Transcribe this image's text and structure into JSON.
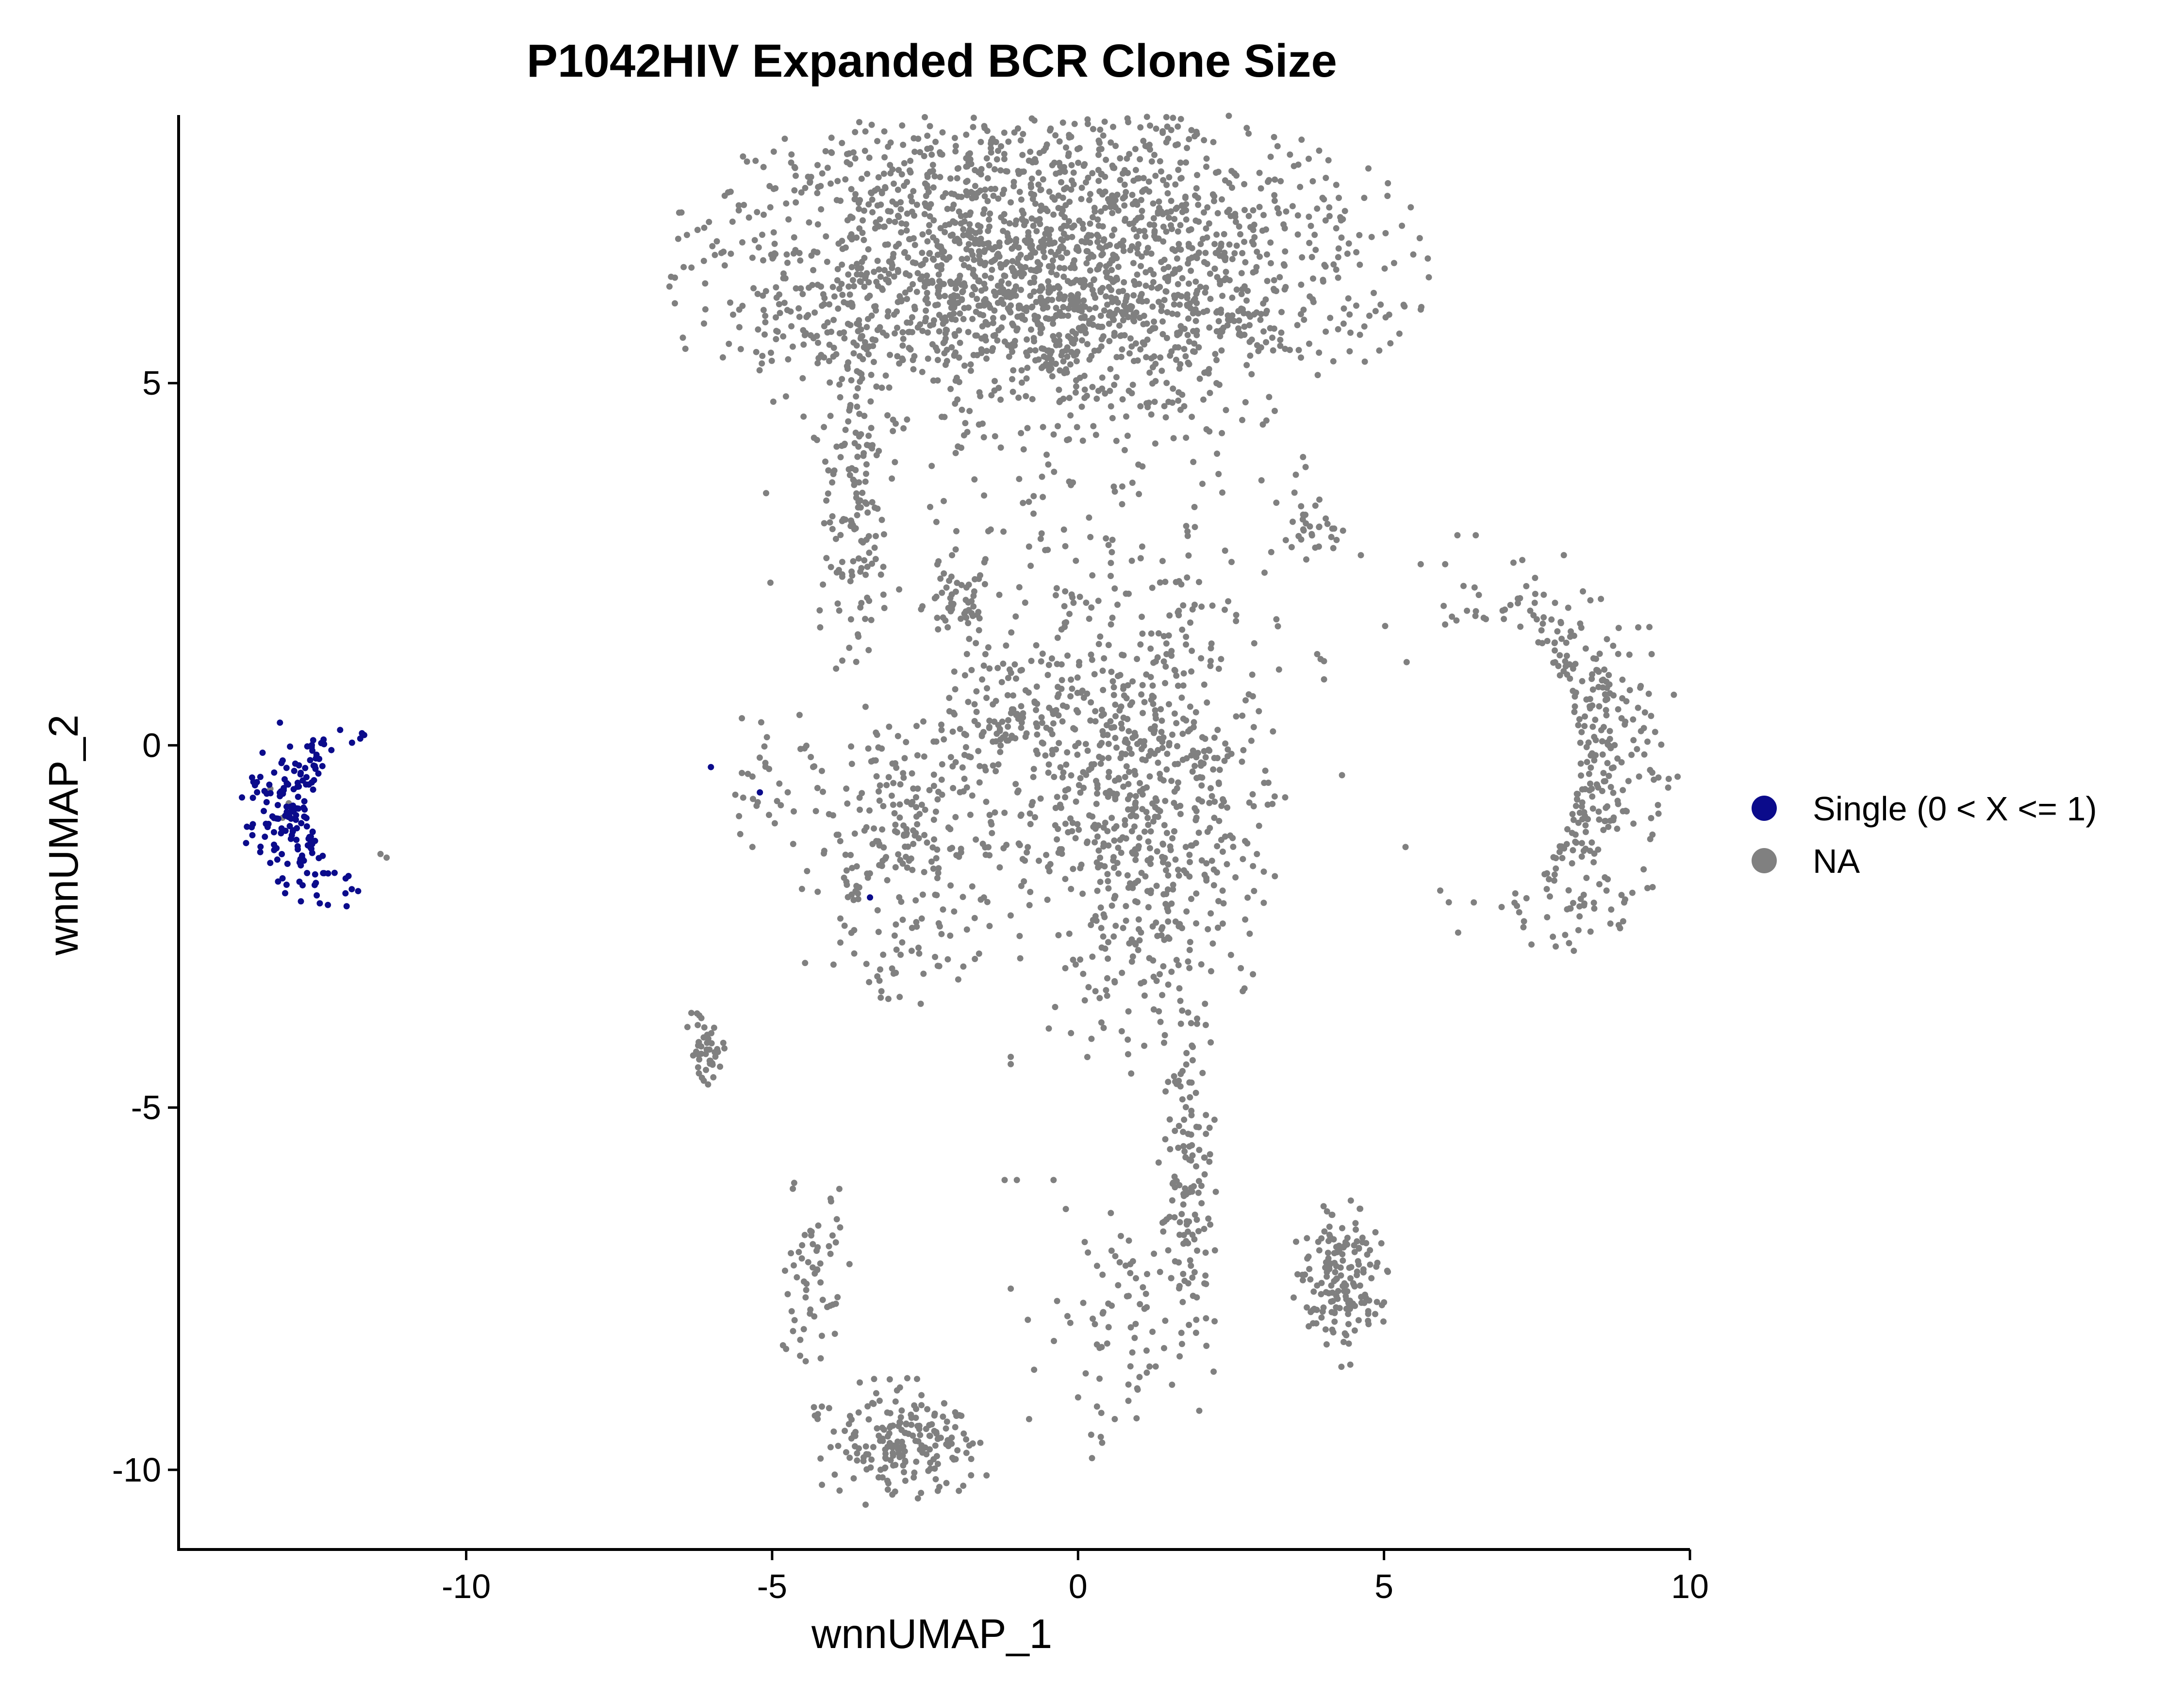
{
  "chart_data": {
    "type": "scatter",
    "title": "P1042HIV Expanded BCR Clone Size",
    "xlabel": "wnnUMAP_1",
    "ylabel": "wnnUMAP_2",
    "xlim": [
      -14.7,
      10.0
    ],
    "ylim": [
      -11.1,
      8.7
    ],
    "x_ticks": [
      -10,
      -5,
      0,
      5,
      10
    ],
    "x_tick_labels": [
      "-10",
      "-5",
      "0",
      "5",
      "10"
    ],
    "y_ticks": [
      -10,
      -5,
      0,
      5
    ],
    "y_tick_labels": [
      "-10",
      "-5",
      "0",
      "5"
    ],
    "grid": false,
    "legend_position": "right",
    "legend": [
      {
        "label": "Single (0 < X <= 1)",
        "color": "#0b0b8b"
      },
      {
        "label": "NA",
        "color": "#808080"
      }
    ],
    "series": [
      {
        "name": "Single (0 < X <= 1)",
        "color": "#0b0b8b",
        "clusters": [
          {
            "cx": -12.4,
            "cy": -0.9,
            "sx": 0.55,
            "sy": 0.6,
            "n": 175,
            "shape": "crescent-left"
          }
        ],
        "points": [
          [
            -6.0,
            -0.3
          ],
          [
            -5.2,
            -0.65
          ],
          [
            -3.4,
            -2.1
          ]
        ]
      },
      {
        "name": "NA",
        "color": "#808080",
        "clusters": [
          {
            "cx": -0.5,
            "cy": 6.5,
            "sx": 2.6,
            "sy": 1.4,
            "n": 2100,
            "shape": "dome"
          },
          {
            "cx": -3.7,
            "cy": 3.6,
            "sx": 0.3,
            "sy": 1.3,
            "n": 160,
            "shape": "blob"
          },
          {
            "cx": 1.0,
            "cy": -1.0,
            "sx": 1.0,
            "sy": 1.6,
            "n": 700,
            "shape": "blob"
          },
          {
            "cx": -2.8,
            "cy": -1.5,
            "sx": 0.9,
            "sy": 1.0,
            "n": 260,
            "shape": "blob"
          },
          {
            "cx": -1.3,
            "cy": 0.4,
            "sx": 0.5,
            "sy": 0.5,
            "n": 90,
            "shape": "blob"
          },
          {
            "cx": -2.0,
            "cy": 2.0,
            "sx": 0.3,
            "sy": 0.35,
            "n": 50,
            "shape": "blob"
          },
          {
            "cx": 0.0,
            "cy": 2.5,
            "sx": 2.2,
            "sy": 2.3,
            "n": 260,
            "shape": "sparse"
          },
          {
            "cx": 7.5,
            "cy": -0.2,
            "sx": 1.0,
            "sy": 1.2,
            "n": 330,
            "shape": "crescent-right"
          },
          {
            "cx": -6.1,
            "cy": -4.2,
            "sx": 0.18,
            "sy": 0.25,
            "n": 45,
            "shape": "blob"
          },
          {
            "cx": 4.3,
            "cy": -7.4,
            "sx": 0.35,
            "sy": 0.5,
            "n": 170,
            "shape": "blob"
          },
          {
            "cx": -2.9,
            "cy": -9.6,
            "sx": 0.7,
            "sy": 0.4,
            "n": 200,
            "shape": "blob"
          },
          {
            "cx": -4.3,
            "cy": -7.3,
            "sx": 0.3,
            "sy": 0.6,
            "n": 60,
            "shape": "blob"
          },
          {
            "cx": 1.8,
            "cy": -6.0,
            "sx": 0.2,
            "sy": 1.2,
            "n": 120,
            "shape": "blob"
          },
          {
            "cx": 0.8,
            "cy": -7.8,
            "sx": 0.7,
            "sy": 0.9,
            "n": 90,
            "shape": "sparse"
          },
          {
            "cx": 3.9,
            "cy": 3.0,
            "sx": 0.3,
            "sy": 0.15,
            "n": 25,
            "shape": "blob"
          },
          {
            "cx": -5.0,
            "cy": -0.5,
            "sx": 0.4,
            "sy": 0.5,
            "n": 30,
            "shape": "sparse"
          }
        ],
        "points": [
          [
            -11.3,
            -1.55
          ],
          [
            -11.4,
            -1.5
          ],
          [
            -12.9,
            -0.8
          ],
          [
            -13.2,
            -0.6
          ],
          [
            -13.0,
            -1.0
          ],
          [
            0.0,
            -9.0
          ],
          [
            0.6,
            -9.3
          ],
          [
            -1.0,
            -6.0
          ],
          [
            -1.2,
            -6.0
          ],
          [
            -0.4,
            -6.0
          ],
          [
            -0.2,
            -6.4
          ],
          [
            -1.1,
            -4.3
          ],
          [
            -1.1,
            -4.4
          ],
          [
            -3.1,
            -3.5
          ],
          [
            -1.1,
            -7.5
          ],
          [
            -0.8,
            -9.3
          ],
          [
            6.2,
            2.9
          ],
          [
            6.5,
            2.9
          ],
          [
            6.0,
            2.5
          ],
          [
            5.6,
            2.5
          ],
          [
            6.3,
            2.2
          ]
        ]
      }
    ]
  }
}
